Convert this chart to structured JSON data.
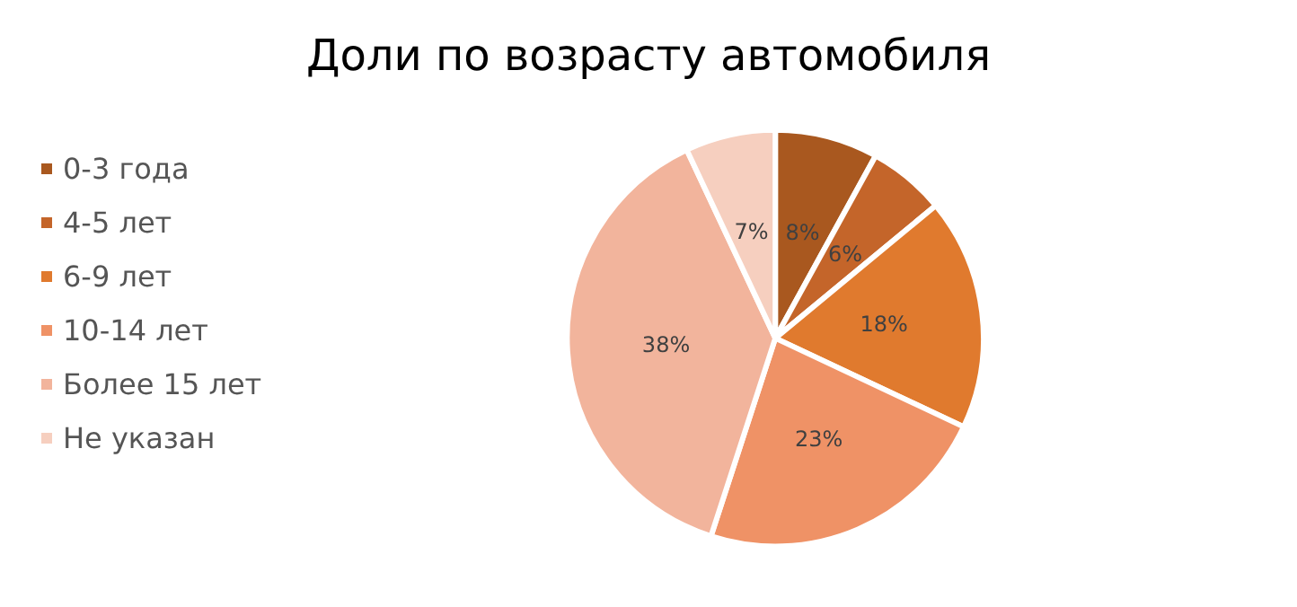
{
  "chart_data": {
    "type": "pie",
    "title": "Доли по возрасту автомобиля",
    "categories": [
      "0-3 года",
      "4-5 лет",
      "6-9 лет",
      "10-14 лет",
      "Более 15 лет",
      "Не указан"
    ],
    "values": [
      8,
      6,
      18,
      23,
      38,
      7
    ],
    "value_labels": [
      "8%",
      "6%",
      "18%",
      "23%",
      "38%",
      "7%"
    ],
    "colors": [
      "#a9581f",
      "#c4652a",
      "#e07a2e",
      "#ef9266",
      "#f2b49c",
      "#f6cfbf"
    ],
    "legend": "left"
  }
}
